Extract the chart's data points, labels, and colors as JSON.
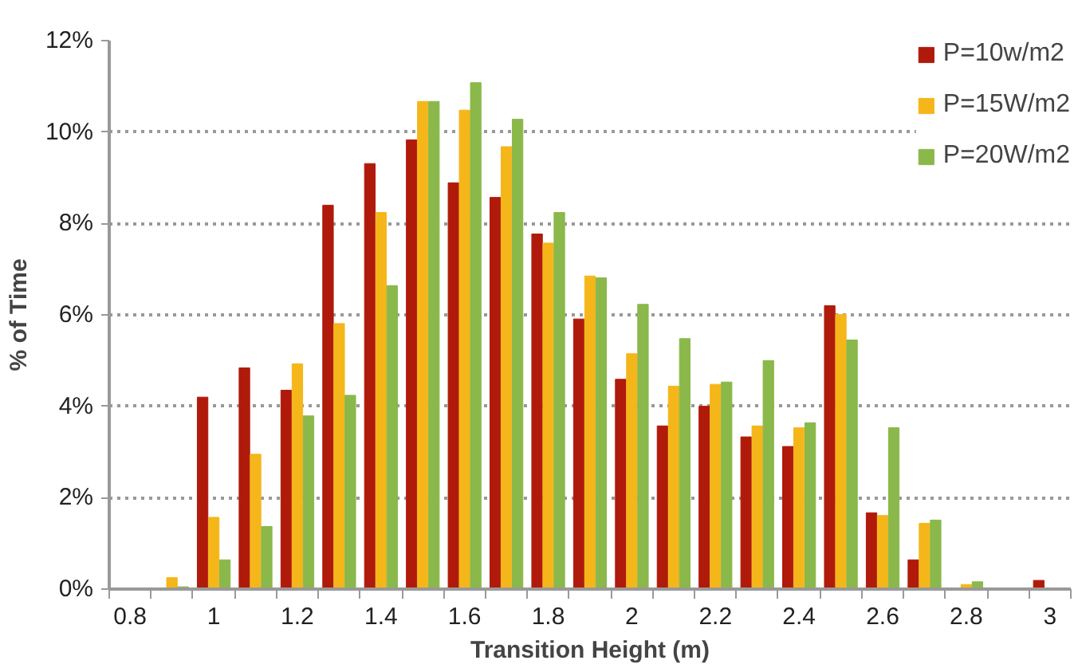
{
  "chart_data": {
    "type": "bar",
    "xlabel": "Transition Height (m)",
    "ylabel": "% of Time",
    "categories": [
      "0.8",
      null,
      "1",
      null,
      "1.2",
      null,
      "1.4",
      null,
      "1.6",
      null,
      "1.8",
      null,
      "2",
      null,
      "2.2",
      null,
      "2.4",
      null,
      "2.6",
      null,
      "2.8",
      null,
      "3"
    ],
    "series": [
      {
        "name": "P=10w/m2",
        "color": "#b01a0a",
        "values": [
          0,
          0,
          4.2,
          4.84,
          4.35,
          8.4,
          9.31,
          9.83,
          8.89,
          8.57,
          7.77,
          5.91,
          4.59,
          3.57,
          4.0,
          3.33,
          3.12,
          6.2,
          1.67,
          0.64,
          0,
          0,
          0.19
        ]
      },
      {
        "name": "P=15W/m2",
        "color": "#f5b61a",
        "values": [
          0,
          0.25,
          1.57,
          2.95,
          4.93,
          5.81,
          8.24,
          10.67,
          10.48,
          9.68,
          7.57,
          6.85,
          5.15,
          4.44,
          4.48,
          3.57,
          3.53,
          6.01,
          1.61,
          1.44,
          0.1,
          0,
          0
        ]
      },
      {
        "name": "P=20W/m2",
        "color": "#8ab84a",
        "values": [
          0,
          0.05,
          0.64,
          1.37,
          3.79,
          4.24,
          6.64,
          10.67,
          11.08,
          10.28,
          8.24,
          6.81,
          6.23,
          5.48,
          4.53,
          5.0,
          3.64,
          5.45,
          3.53,
          1.51,
          0.16,
          0,
          0
        ]
      }
    ],
    "ylim": [
      0,
      12
    ],
    "yticks": [
      {
        "value": 0,
        "label": "0%"
      },
      {
        "value": 2,
        "label": "2%"
      },
      {
        "value": 4,
        "label": "4%"
      },
      {
        "value": 6,
        "label": "6%"
      },
      {
        "value": 8,
        "label": "8%"
      },
      {
        "value": 10,
        "label": "10%"
      },
      {
        "value": 12,
        "label": "12%"
      }
    ],
    "grid": "y",
    "legend": "top right"
  }
}
